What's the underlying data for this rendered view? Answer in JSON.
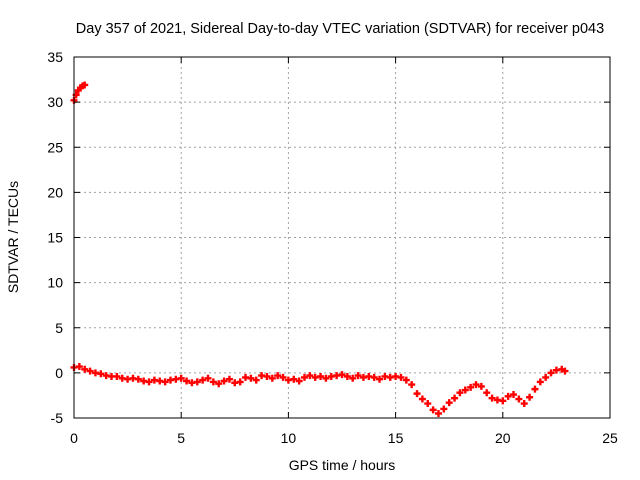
{
  "chart_data": {
    "type": "scatter",
    "title": "Day 357 of 2021, Sidereal Day-to-day VTEC variation (SDTVAR) for receiver p043",
    "xlabel": "GPS time / hours",
    "ylabel": "SDTVAR / TECUs",
    "xlim": [
      0,
      25
    ],
    "ylim": [
      -5,
      35
    ],
    "xticks": [
      0,
      5,
      10,
      15,
      20,
      25
    ],
    "yticks": [
      -5,
      0,
      5,
      10,
      15,
      20,
      25,
      30,
      35
    ],
    "xtick_labels": [
      "0",
      "5",
      "10",
      "15",
      "20",
      "25"
    ],
    "ytick_labels": [
      "-5",
      "0",
      "5",
      "10",
      "15",
      "20",
      "25",
      "30",
      "35"
    ],
    "grid": true,
    "legend": "none",
    "series": [
      {
        "name": "SDTVAR",
        "color": "#ff0000",
        "marker": "plus",
        "x": [
          0.0,
          0.1,
          0.2,
          0.3,
          0.4,
          0.5,
          0.0,
          0.25,
          0.5,
          0.75,
          1.0,
          1.25,
          1.5,
          1.75,
          2.0,
          2.25,
          2.5,
          2.75,
          3.0,
          3.25,
          3.5,
          3.75,
          4.0,
          4.25,
          4.5,
          4.75,
          5.0,
          5.25,
          5.5,
          5.75,
          6.0,
          6.25,
          6.5,
          6.75,
          7.0,
          7.25,
          7.5,
          7.75,
          8.0,
          8.25,
          8.5,
          8.75,
          9.0,
          9.25,
          9.5,
          9.75,
          10.0,
          10.25,
          10.5,
          10.75,
          11.0,
          11.25,
          11.5,
          11.75,
          12.0,
          12.25,
          12.5,
          12.75,
          13.0,
          13.25,
          13.5,
          13.75,
          14.0,
          14.25,
          14.5,
          14.75,
          15.0,
          15.25,
          15.5,
          15.75,
          16.0,
          16.25,
          16.5,
          16.75,
          17.0,
          17.25,
          17.5,
          17.75,
          18.0,
          18.25,
          18.5,
          18.75,
          19.0,
          19.25,
          19.5,
          19.75,
          20.0,
          20.25,
          20.5,
          20.75,
          21.0,
          21.25,
          21.5,
          21.75,
          22.0,
          22.25,
          22.5,
          22.75,
          22.9
        ],
        "y": [
          30.2,
          30.8,
          31.3,
          31.6,
          31.8,
          31.9,
          0.6,
          0.7,
          0.4,
          0.2,
          0.0,
          -0.1,
          -0.3,
          -0.4,
          -0.4,
          -0.6,
          -0.7,
          -0.6,
          -0.7,
          -0.9,
          -1.0,
          -0.8,
          -0.9,
          -1.0,
          -0.8,
          -0.7,
          -0.6,
          -0.9,
          -1.1,
          -1.0,
          -0.8,
          -0.6,
          -1.0,
          -1.2,
          -0.9,
          -0.7,
          -1.1,
          -1.0,
          -0.5,
          -0.6,
          -0.8,
          -0.3,
          -0.4,
          -0.6,
          -0.3,
          -0.5,
          -0.8,
          -0.7,
          -0.9,
          -0.5,
          -0.3,
          -0.5,
          -0.4,
          -0.6,
          -0.4,
          -0.3,
          -0.2,
          -0.4,
          -0.6,
          -0.3,
          -0.5,
          -0.4,
          -0.5,
          -0.7,
          -0.4,
          -0.5,
          -0.4,
          -0.5,
          -0.8,
          -1.3,
          -2.3,
          -2.9,
          -3.4,
          -4.1,
          -4.5,
          -4.0,
          -3.3,
          -2.8,
          -2.2,
          -1.9,
          -1.6,
          -1.3,
          -1.5,
          -2.2,
          -2.8,
          -3.0,
          -3.1,
          -2.6,
          -2.4,
          -2.9,
          -3.4,
          -2.7,
          -1.8,
          -1.0,
          -0.5,
          0.0,
          0.3,
          0.4,
          0.2
        ]
      }
    ]
  }
}
